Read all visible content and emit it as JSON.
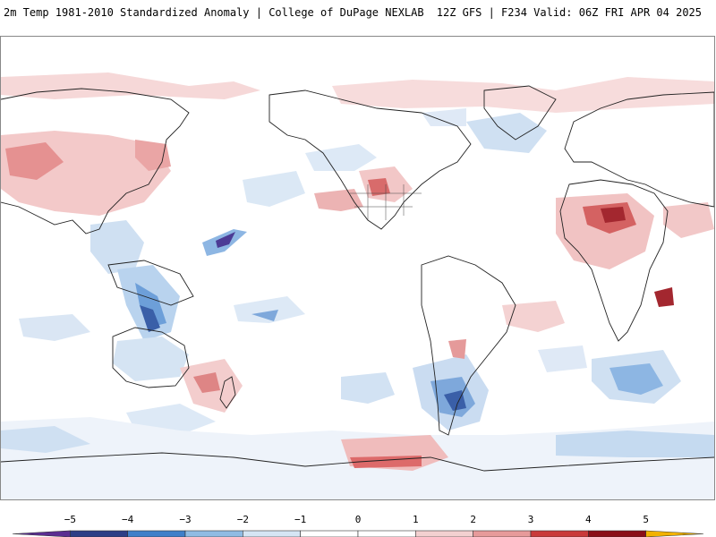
{
  "header": {
    "title_left": "2m Temp 1981-2010 Standardized Anomaly | College of DuPage NEXLAB",
    "title_right": "12Z GFS | F234 Valid: 06Z FRI APR 04 2025"
  },
  "map": {
    "type": "global standardized temperature anomaly",
    "projection": "equirectangular"
  },
  "colorbar": {
    "labels": [
      "-5",
      "-4",
      "-3",
      "-2",
      "-1",
      "0",
      "1",
      "2",
      "3",
      "4",
      "5"
    ],
    "colors": [
      "#5a2d91",
      "#2c3e86",
      "#3f7fc9",
      "#8fbbe3",
      "#d5e5f4",
      "#ffffff",
      "#ffffff",
      "#f3d0d0",
      "#e69a9a",
      "#c93a3a",
      "#8a0e17",
      "#f2b200"
    ]
  }
}
